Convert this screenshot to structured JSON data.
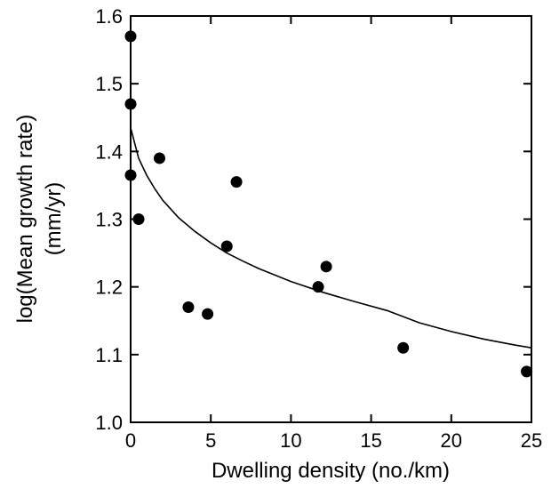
{
  "chart_data": {
    "type": "scatter",
    "title": "",
    "xlabel": "Dwelling density (no./km)",
    "ylabel_line1": "log(Mean growth rate)",
    "ylabel_line2": "(mm/yr)",
    "xlim": [
      0,
      25
    ],
    "ylim": [
      1.0,
      1.6
    ],
    "xticks": [
      0,
      5,
      10,
      15,
      20,
      25
    ],
    "yticks": [
      1.0,
      1.1,
      1.2,
      1.3,
      1.4,
      1.5,
      1.6
    ],
    "ytick_labels": [
      "1.0",
      "1.1",
      "1.2",
      "1.3",
      "1.4",
      "1.5",
      "1.6"
    ],
    "grid": false,
    "series": [
      {
        "kind": "points",
        "x": [
          0.0,
          0.0,
          0.0,
          0.5,
          1.8,
          3.6,
          4.8,
          6.0,
          6.6,
          11.7,
          12.2,
          17.0,
          24.7
        ],
        "y": [
          1.57,
          1.47,
          1.365,
          1.3,
          1.39,
          1.17,
          1.16,
          1.26,
          1.355,
          1.2,
          1.23,
          1.11,
          1.075
        ]
      },
      {
        "kind": "fit-curve",
        "x": [
          0.0,
          0.5,
          1.0,
          1.5,
          2.0,
          3.0,
          4.0,
          5.0,
          6.0,
          7.0,
          8.0,
          10.0,
          12.0,
          14.0,
          16.0,
          18.0,
          20.0,
          22.0,
          24.0,
          25.0
        ],
        "y": [
          1.435,
          1.39,
          1.365,
          1.345,
          1.328,
          1.302,
          1.282,
          1.265,
          1.25,
          1.238,
          1.227,
          1.208,
          1.192,
          1.178,
          1.165,
          1.147,
          1.134,
          1.123,
          1.114,
          1.11
        ]
      }
    ]
  }
}
